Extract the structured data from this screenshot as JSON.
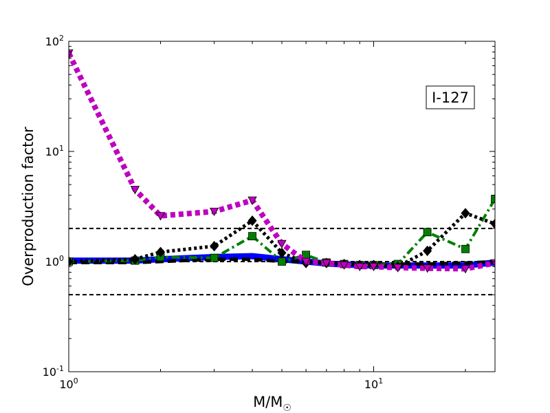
{
  "chart_data": {
    "type": "line",
    "xlabel": "M/M",
    "xlabel_sub": "☉",
    "ylabel": "Overproduction factor",
    "xscale": "log",
    "yscale": "log",
    "xlim": [
      1,
      25
    ],
    "ylim": [
      0.1,
      100
    ],
    "x_ticks": [
      {
        "value": 1,
        "base": "10",
        "exp": "0"
      },
      {
        "value": 10,
        "base": "10",
        "exp": "1"
      }
    ],
    "y_ticks": [
      {
        "value": 0.1,
        "base": "10",
        "exp": "-1"
      },
      {
        "value": 1,
        "base": "10",
        "exp": "0"
      },
      {
        "value": 10,
        "base": "10",
        "exp": "1"
      },
      {
        "value": 100,
        "base": "10",
        "exp": "2"
      }
    ],
    "reference_lines": [
      2.0,
      1.0,
      0.5
    ],
    "annotation": "I-127",
    "series": [
      {
        "color": "#ff0000",
        "dash": "dashed",
        "marker": "none",
        "x": [
          1,
          1.65,
          2,
          3,
          4,
          5,
          6,
          7,
          8,
          9,
          10,
          12,
          15,
          20,
          25
        ],
        "y": [
          1.0,
          1.0,
          1.02,
          1.08,
          1.1,
          1.05,
          1.0,
          0.97,
          0.95,
          0.94,
          0.93,
          0.92,
          0.92,
          0.93,
          1.0
        ]
      },
      {
        "color": "#0000ff",
        "dash": "solid",
        "marker": "none",
        "x": [
          1,
          1.65,
          2,
          3,
          4,
          5,
          6,
          7,
          8,
          9,
          10,
          12,
          15,
          20,
          25
        ],
        "y": [
          1.02,
          1.02,
          1.05,
          1.1,
          1.12,
          1.05,
          1.0,
          0.96,
          0.94,
          0.93,
          0.92,
          0.92,
          0.92,
          0.92,
          0.98
        ]
      },
      {
        "color": "#000000",
        "dash": "dashed",
        "marker": "none",
        "x": [
          1,
          1.65,
          2,
          3,
          4,
          5,
          6,
          7,
          8,
          9,
          10,
          12,
          15,
          20,
          25
        ],
        "y": [
          0.98,
          0.98,
          1.0,
          1.05,
          1.05,
          1.0,
          1.0,
          0.98,
          0.96,
          0.95,
          0.95,
          0.95,
          0.95,
          0.97,
          1.0
        ]
      },
      {
        "color": "#008000",
        "dash": "dashdot",
        "marker": "square",
        "x": [
          1,
          1.65,
          2,
          3,
          4,
          5,
          6,
          7,
          8,
          9,
          10,
          12,
          15,
          20,
          25
        ],
        "y": [
          1.0,
          1.02,
          1.1,
          1.08,
          1.7,
          1.0,
          1.15,
          0.98,
          0.95,
          0.93,
          0.93,
          0.95,
          1.85,
          1.3,
          3.7
        ]
      },
      {
        "color": "#000000",
        "dash": "dotted",
        "marker": "diamond",
        "x": [
          1,
          1.65,
          2,
          3,
          4,
          5,
          6,
          7,
          8,
          9,
          10,
          12,
          15,
          20,
          25
        ],
        "y": [
          1.0,
          1.05,
          1.22,
          1.38,
          2.35,
          1.2,
          0.97,
          0.97,
          0.95,
          0.93,
          0.93,
          0.9,
          1.25,
          2.75,
          2.2
        ]
      },
      {
        "color": "#bf00bf",
        "dash": "dotted",
        "marker": "triangle-down",
        "x": [
          1,
          1.65,
          2,
          3,
          4,
          5,
          6,
          7,
          8,
          9,
          10,
          12,
          15,
          20,
          25
        ],
        "y": [
          78,
          4.5,
          2.6,
          2.85,
          3.6,
          1.45,
          1.0,
          0.97,
          0.93,
          0.9,
          0.9,
          0.88,
          0.87,
          0.86,
          0.97
        ]
      }
    ]
  }
}
